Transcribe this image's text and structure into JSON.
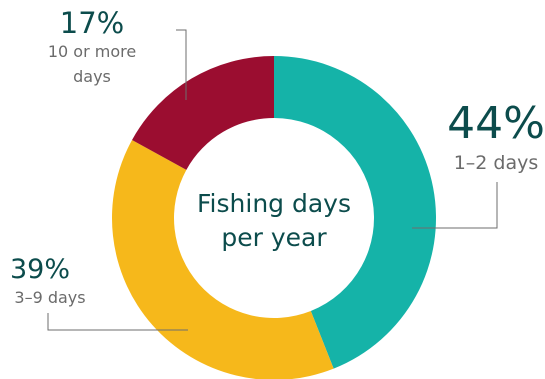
{
  "chart_data": {
    "type": "pie",
    "title_lines": [
      "Fishing days",
      "per year"
    ],
    "slices": [
      {
        "label": "1–2 days",
        "value": 44,
        "percent_label": "44%",
        "color": "#15b3a8"
      },
      {
        "label": "3–9 days",
        "value": 39,
        "percent_label": "39%",
        "color": "#f6b81b"
      },
      {
        "label": "10 or more days",
        "label_lines": [
          "10 or more",
          "days"
        ],
        "value": 17,
        "percent_label": "17%",
        "color": "#9b0d30"
      }
    ],
    "donut": true,
    "legend": "none"
  }
}
